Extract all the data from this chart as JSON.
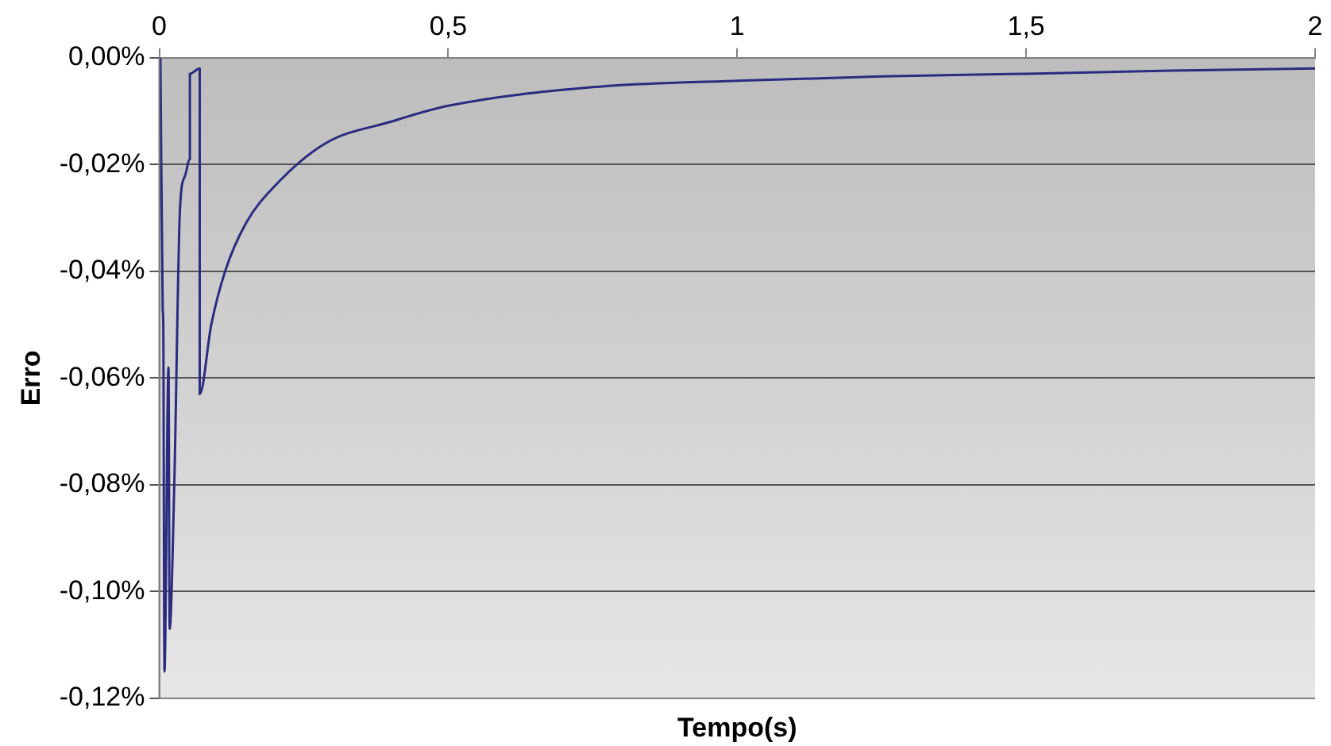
{
  "chart_data": {
    "type": "line",
    "xlabel": "Tempo(s)",
    "ylabel": "Erro",
    "x": [
      0.002,
      0.006,
      0.007,
      0.009,
      0.016,
      0.018,
      0.026,
      0.036,
      0.045,
      0.053,
      0.053,
      0.07,
      0.07,
      0.09,
      0.114,
      0.15,
      0.2,
      0.288,
      0.4,
      0.5,
      0.75,
      1,
      1.25,
      1.5,
      1.75,
      2
    ],
    "series": [
      {
        "color": "#2b2b80",
        "values": [
          0,
          -0.047,
          -0.05,
          -0.115,
          -0.058,
          -0.107,
          -0.08,
          -0.028,
          -0.022,
          -0.019,
          -0.003,
          -0.002,
          -0.063,
          -0.05,
          -0.04,
          -0.031,
          -0.024,
          -0.016,
          -0.012,
          -0.009,
          -0.0055,
          -0.0043,
          -0.0035,
          -0.003,
          -0.0024,
          -0.002
        ]
      }
    ],
    "xlim": [
      0,
      2
    ],
    "xticks": [
      0,
      {
        "value": 0.5,
        "label": "0,5"
      },
      1,
      {
        "value": 1.5,
        "label": "1,5"
      },
      2
    ],
    "ylim": [
      -0.12,
      0
    ],
    "yticks": [
      {
        "value": -0.12,
        "label": "-0,12%"
      },
      {
        "value": -0.1,
        "label": "-0,10%"
      },
      {
        "value": -0.08,
        "label": "-0,08%"
      },
      {
        "value": -0.06,
        "label": "-0,06%"
      },
      {
        "value": -0.04,
        "label": "-0,04%"
      },
      {
        "value": -0.02,
        "label": "-0,02%"
      },
      {
        "value": 0,
        "label": "0,00%"
      }
    ],
    "grid": "y",
    "legend": false,
    "marker": "none",
    "line_style": "solid"
  }
}
